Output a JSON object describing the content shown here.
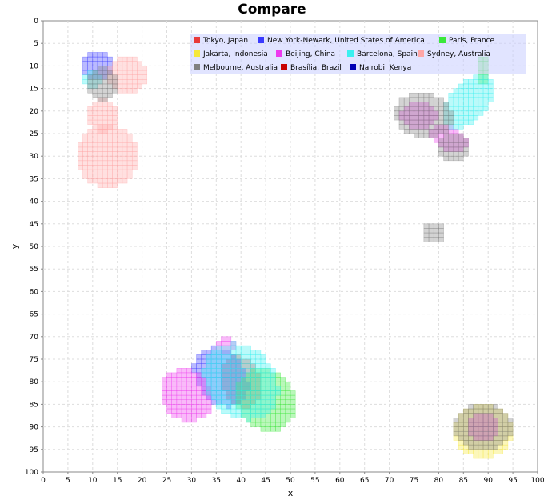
{
  "chart_data": {
    "type": "heatmap",
    "title": "Compare",
    "xlabel": "x",
    "ylabel": "y",
    "xlim": [
      0,
      100
    ],
    "ylim": [
      0,
      100
    ],
    "y_inverted": true,
    "x_ticks": [
      0,
      5,
      10,
      15,
      20,
      25,
      30,
      35,
      40,
      45,
      50,
      55,
      60,
      65,
      70,
      75,
      80,
      85,
      90,
      95,
      100
    ],
    "y_ticks": [
      0,
      5,
      10,
      15,
      20,
      25,
      30,
      35,
      40,
      45,
      50,
      55,
      60,
      65,
      70,
      75,
      80,
      85,
      90,
      95,
      100
    ],
    "grid": true,
    "legend_position": "top-right",
    "series": [
      {
        "name": "Tokyo, Japan",
        "color": "#e83a3a",
        "blobs": [
          {
            "cx": 40,
            "cy": 80,
            "rx": 4,
            "ry": 6,
            "rot": -20
          }
        ]
      },
      {
        "name": "New York-Newark, United States of America",
        "color": "#3a3aff",
        "blobs": [
          {
            "cx": 11,
            "cy": 10,
            "rx": 3,
            "ry": 3,
            "rot": 0
          },
          {
            "cx": 36,
            "cy": 79,
            "rx": 5,
            "ry": 7,
            "rot": -30
          }
        ]
      },
      {
        "name": "Paris, France",
        "color": "#3ae83a",
        "blobs": [
          {
            "cx": 89,
            "cy": 11,
            "rx": 1.5,
            "ry": 3,
            "rot": 0
          },
          {
            "cx": 45,
            "cy": 84,
            "rx": 6,
            "ry": 7,
            "rot": -30
          }
        ]
      },
      {
        "name": "Jakarta, Indonesia",
        "color": "#f5e83a",
        "blobs": [
          {
            "cx": 89,
            "cy": 91,
            "rx": 6,
            "ry": 6,
            "rot": 0
          }
        ]
      },
      {
        "name": "Beijing, China",
        "color": "#ee3aee",
        "blobs": [
          {
            "cx": 76,
            "cy": 21,
            "rx": 4,
            "ry": 3,
            "rot": 0
          },
          {
            "cx": 82,
            "cy": 26,
            "rx": 4,
            "ry": 2.5,
            "rot": 30
          },
          {
            "cx": 89,
            "cy": 90,
            "rx": 3,
            "ry": 3,
            "rot": 0
          },
          {
            "cx": 29,
            "cy": 83,
            "rx": 5,
            "ry": 6,
            "rot": -30
          },
          {
            "cx": 37,
            "cy": 72,
            "rx": 2,
            "ry": 2,
            "rot": 0
          }
        ]
      },
      {
        "name": "Barcelona, Spain",
        "color": "#3af0f0",
        "blobs": [
          {
            "cx": 86,
            "cy": 18,
            "rx": 4,
            "ry": 7,
            "rot": 40
          },
          {
            "cx": 10,
            "cy": 13,
            "rx": 2,
            "ry": 2,
            "rot": 0
          },
          {
            "cx": 40,
            "cy": 80,
            "rx": 7,
            "ry": 9,
            "rot": -30
          }
        ]
      },
      {
        "name": "Sydney, Australia",
        "color": "#ffa6a6",
        "blobs": [
          {
            "cx": 17,
            "cy": 12,
            "rx": 4,
            "ry": 4,
            "rot": 0
          },
          {
            "cx": 13,
            "cy": 30,
            "rx": 6,
            "ry": 7,
            "rot": 0
          },
          {
            "cx": 12,
            "cy": 21,
            "rx": 3,
            "ry": 4,
            "rot": 0
          }
        ]
      },
      {
        "name": "Melbourne, Australia",
        "color": "#808080",
        "blobs": [
          {
            "cx": 12,
            "cy": 14,
            "rx": 3,
            "ry": 4,
            "rot": 0
          },
          {
            "cx": 77,
            "cy": 21,
            "rx": 6,
            "ry": 5,
            "rot": 20
          },
          {
            "cx": 83,
            "cy": 28,
            "rx": 3,
            "ry": 3,
            "rot": 0
          },
          {
            "cx": 79,
            "cy": 47,
            "rx": 2.5,
            "ry": 2.5,
            "rot": 0
          },
          {
            "cx": 89,
            "cy": 90,
            "rx": 6,
            "ry": 5,
            "rot": 0
          }
        ]
      },
      {
        "name": "Brasília, Brazil",
        "color": "#c80000",
        "blobs": [
          {
            "cx": 89,
            "cy": 89,
            "rx": 0.6,
            "ry": 0.6,
            "rot": 0
          }
        ]
      },
      {
        "name": "Nairobi, Kenya",
        "color": "#0000b4",
        "blobs": []
      }
    ]
  },
  "legend": {
    "rows": [
      [
        "Tokyo, Japan",
        "New York-Newark, United States of America",
        "Paris, France"
      ],
      [
        "Jakarta, Indonesia",
        "Beijing, China",
        "Barcelona, Spain",
        "Sydney, Australia"
      ],
      [
        "Melbourne, Australia",
        "Brasília, Brazil",
        "Nairobi, Kenya"
      ]
    ]
  }
}
